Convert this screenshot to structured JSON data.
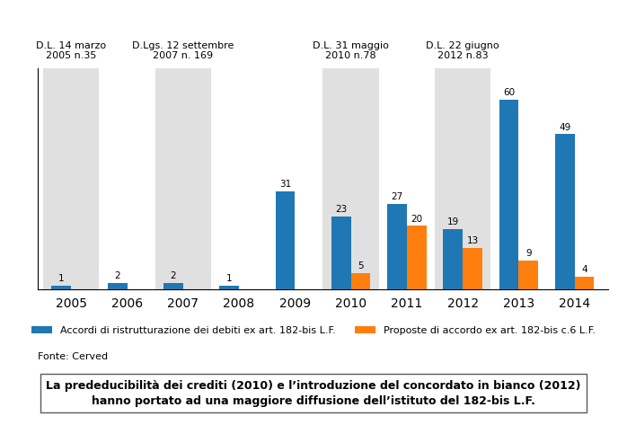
{
  "chart_data": {
    "type": "bar",
    "categories": [
      "2005",
      "2006",
      "2007",
      "2008",
      "2009",
      "2010",
      "2011",
      "2012",
      "2013",
      "2014"
    ],
    "series": [
      {
        "name": "Accordi di ristrutturazione dei debiti ex art. 182-bis L.F.",
        "values": [
          1,
          2,
          2,
          1,
          31,
          23,
          27,
          19,
          60,
          49
        ]
      },
      {
        "name": "Proposte di accordo ex art. 182-bis c.6 L.F.",
        "values": [
          0,
          0,
          0,
          0,
          0,
          5,
          20,
          13,
          9,
          4
        ],
        "value_labels": [
          null,
          null,
          null,
          null,
          null,
          "5",
          "20",
          "13",
          "9",
          "4"
        ]
      }
    ],
    "ylim": [
      0,
      70
    ],
    "yticks": [],
    "tick_labels": "x",
    "data_labels": true,
    "legend": "lower center",
    "annotations": [
      {
        "x": "2005",
        "text": "D.L. 14 marzo\n2005 n.35"
      },
      {
        "x": "2007",
        "text": "D.Lgs. 12 settembre\n2007 n. 169"
      },
      {
        "x": "2010",
        "text": "D.L. 31 maggio\n2010 n.78"
      },
      {
        "x": "2012",
        "text": "D.L. 22 giugno\n2012 n.83"
      }
    ],
    "source": "Fonte: Cerved",
    "footnote": "La prededucibilità dei crediti (2010) e l’introduzione del concordato in bianco (2012)\nhanno portato ad una maggiore diffusione dell’istituto del 182-bis L.F."
  }
}
